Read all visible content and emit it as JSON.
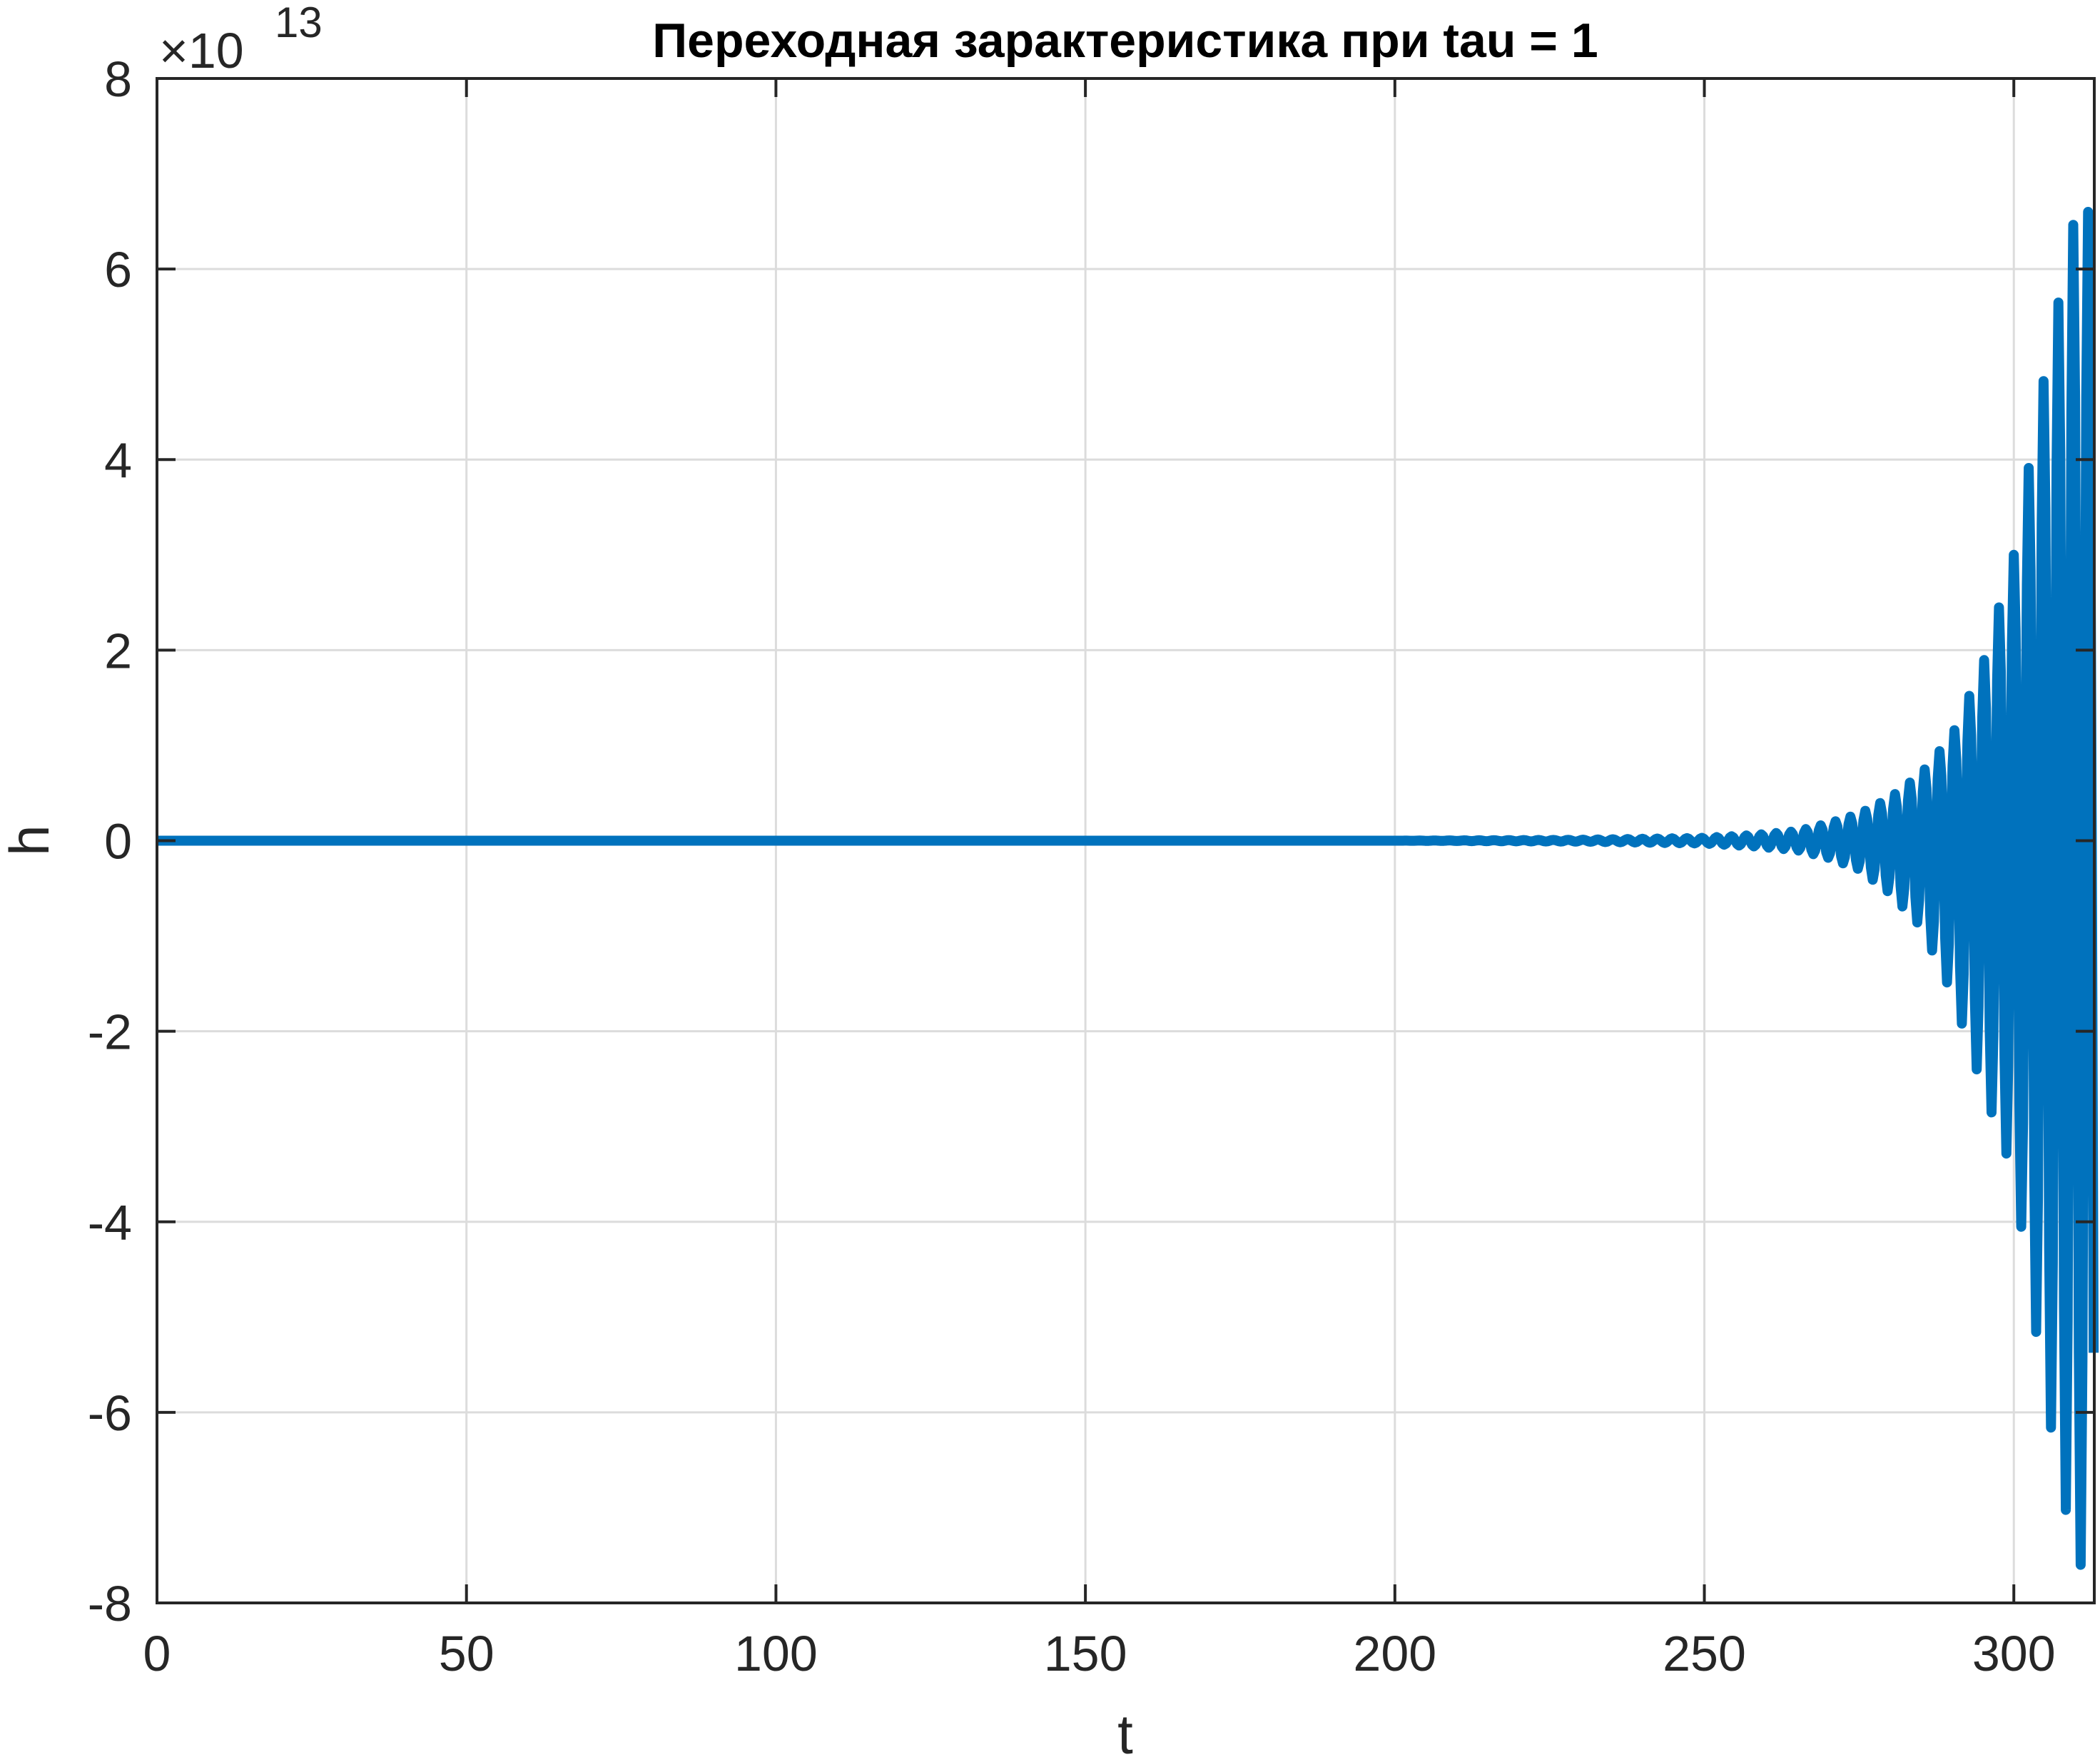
{
  "chart_data": {
    "type": "line",
    "title": "Переходная зарактеристика при tau = 1",
    "xlabel": "t",
    "ylabel": "h",
    "xlim": [
      0,
      313
    ],
    "ylim": [
      -8,
      8
    ],
    "y_multiplier": "×10",
    "y_exponent": "13",
    "x_ticks": [
      0,
      50,
      100,
      150,
      200,
      250,
      300
    ],
    "y_ticks": [
      -8,
      -6,
      -4,
      -2,
      0,
      2,
      4,
      6,
      8
    ],
    "x_tick_labels": [
      "0",
      "50",
      "100",
      "150",
      "200",
      "250",
      "300"
    ],
    "y_tick_labels": [
      "-8",
      "-6",
      "-4",
      "-2",
      "0",
      "2",
      "4",
      "6",
      "8"
    ],
    "grid": true,
    "series": [
      {
        "color": "#0072BD",
        "envelope": {
          "t": [
            0,
            200,
            230,
            250,
            258,
            265,
            270,
            275,
            280,
            285,
            290,
            295,
            300,
            305,
            310,
            313
          ],
          "h_max": [
            0.0,
            0.0,
            0.01,
            0.03,
            0.06,
            0.1,
            0.18,
            0.28,
            0.45,
            0.7,
            1.1,
            1.85,
            3.0,
            4.9,
            6.6,
            6.6
          ],
          "h_min": [
            0.0,
            0.0,
            -0.01,
            -0.03,
            -0.06,
            -0.1,
            -0.18,
            -0.3,
            -0.55,
            -0.9,
            -1.6,
            -2.6,
            -3.5,
            -5.8,
            -7.6,
            -7.6
          ]
        },
        "oscillation_period": 2.4
      }
    ],
    "colors": {
      "line": "#0072BD",
      "grid": "#dcdcdc",
      "axis": "#262626"
    }
  }
}
